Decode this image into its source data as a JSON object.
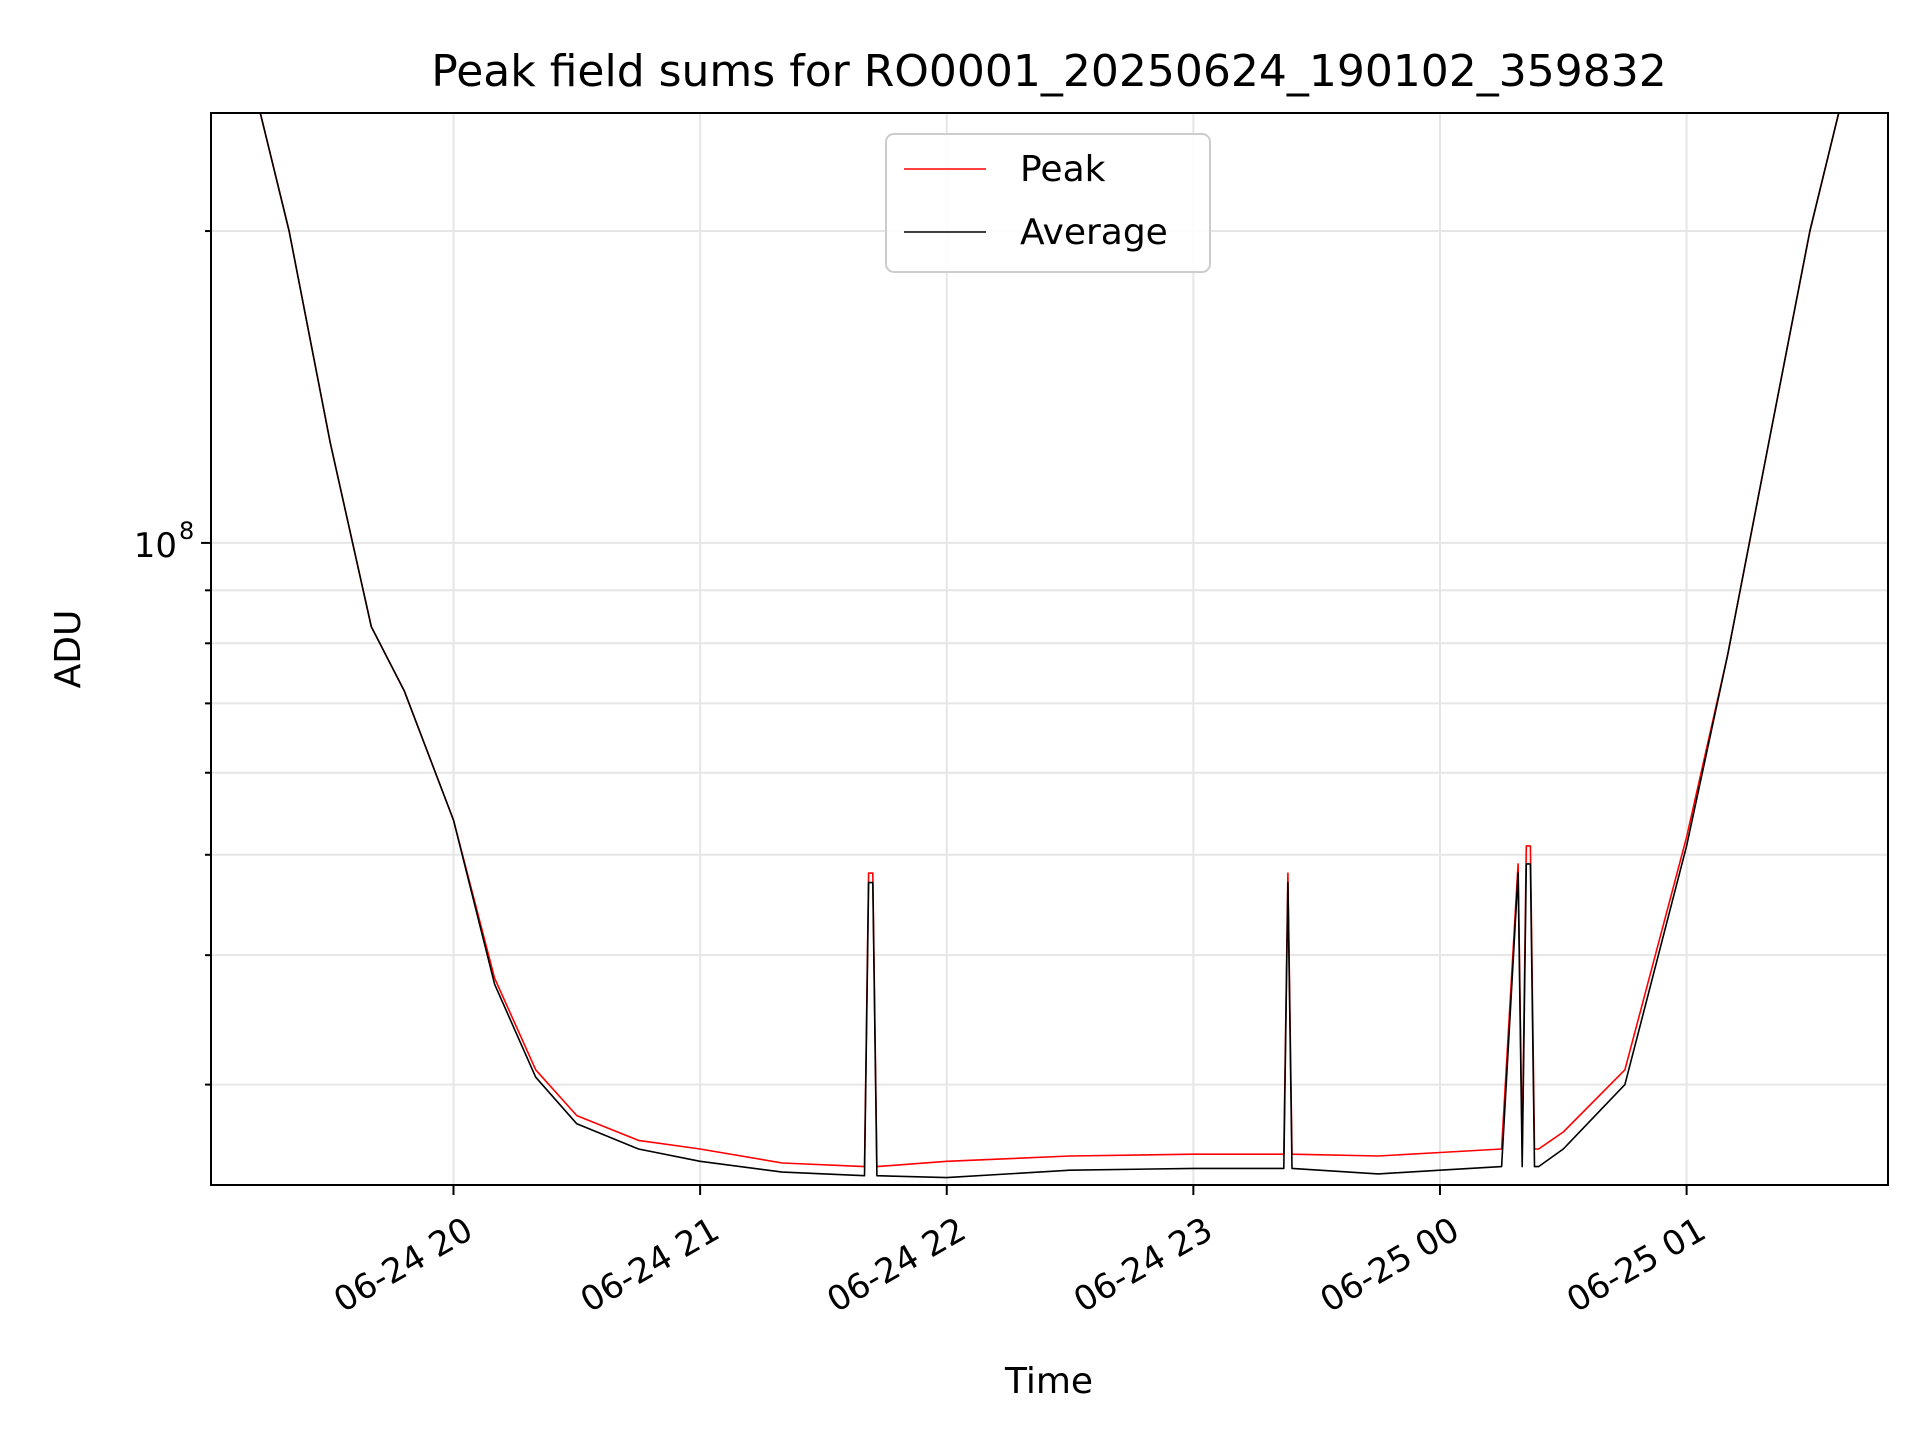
{
  "chart_data": {
    "type": "line",
    "title": "Peak field sums for RO0001_20250624_190102_359832",
    "xlabel": "Time",
    "ylabel": "ADU",
    "yscale": "log",
    "grid": true,
    "legend_position": "upper center",
    "x_tick_labels": [
      "06-24 20",
      "06-24 21",
      "06-24 22",
      "06-24 23",
      "06-25 00",
      "06-25 01"
    ],
    "x_ticks": [
      "2025-06-24 20:00",
      "2025-06-24 21:00",
      "2025-06-24 22:00",
      "2025-06-24 23:00",
      "2025-06-25 00:00",
      "2025-06-25 01:00"
    ],
    "xlim": [
      "2025-06-24 19:01",
      "2025-06-25 01:49"
    ],
    "y_major_ticks": [
      100000000
    ],
    "y_major_tick_labels": [
      "10^8"
    ],
    "ylim": [
      24000000,
      260000000
    ],
    "series": [
      {
        "name": "Peak",
        "color": "#ff0000",
        "x": [
          "2025-06-24 19:10",
          "2025-06-24 19:13",
          "2025-06-24 19:20",
          "2025-06-24 19:30",
          "2025-06-24 19:40",
          "2025-06-24 19:48",
          "2025-06-24 20:00",
          "2025-06-24 20:10",
          "2025-06-24 20:20",
          "2025-06-24 20:30",
          "2025-06-24 20:45",
          "2025-06-24 21:00",
          "2025-06-24 21:20",
          "2025-06-24 21:40",
          "2025-06-24 21:41",
          "2025-06-24 21:42",
          "2025-06-24 21:43",
          "2025-06-24 22:00",
          "2025-06-24 22:30",
          "2025-06-24 23:00",
          "2025-06-24 23:22",
          "2025-06-24 23:23",
          "2025-06-24 23:24",
          "2025-06-24 23:45",
          "2025-06-25 00:00",
          "2025-06-25 00:15",
          "2025-06-25 00:19",
          "2025-06-25 00:20",
          "2025-06-25 00:21",
          "2025-06-25 00:22",
          "2025-06-25 00:23",
          "2025-06-25 00:24",
          "2025-06-25 00:30",
          "2025-06-25 00:45",
          "2025-06-25 01:00",
          "2025-06-25 01:10",
          "2025-06-25 01:20",
          "2025-06-25 01:30",
          "2025-06-25 01:37",
          "2025-06-25 01:40"
        ],
        "y": [
          260000000,
          260000000,
          200000000,
          125000000,
          83000000,
          72000000,
          54000000,
          38000000,
          31000000,
          28000000,
          26500000,
          26000000,
          25200000,
          25000000,
          48000000,
          48000000,
          25000000,
          25300000,
          25600000,
          25700000,
          25700000,
          48000000,
          25700000,
          25600000,
          25800000,
          26000000,
          49000000,
          26000000,
          51000000,
          51000000,
          26000000,
          26000000,
          27000000,
          31000000,
          52000000,
          78000000,
          125000000,
          200000000,
          260000000,
          260000000
        ]
      },
      {
        "name": "Average",
        "color": "#000000",
        "x": [
          "2025-06-24 19:10",
          "2025-06-24 19:13",
          "2025-06-24 19:20",
          "2025-06-24 19:30",
          "2025-06-24 19:40",
          "2025-06-24 19:48",
          "2025-06-24 20:00",
          "2025-06-24 20:10",
          "2025-06-24 20:20",
          "2025-06-24 20:30",
          "2025-06-24 20:45",
          "2025-06-24 21:00",
          "2025-06-24 21:20",
          "2025-06-24 21:40",
          "2025-06-24 21:41",
          "2025-06-24 21:42",
          "2025-06-24 21:43",
          "2025-06-24 22:00",
          "2025-06-24 22:30",
          "2025-06-24 23:00",
          "2025-06-24 23:22",
          "2025-06-24 23:23",
          "2025-06-24 23:24",
          "2025-06-24 23:45",
          "2025-06-25 00:00",
          "2025-06-25 00:15",
          "2025-06-25 00:19",
          "2025-06-25 00:20",
          "2025-06-25 00:21",
          "2025-06-25 00:22",
          "2025-06-25 00:23",
          "2025-06-25 00:24",
          "2025-06-25 00:30",
          "2025-06-25 00:45",
          "2025-06-25 01:00",
          "2025-06-25 01:10",
          "2025-06-25 01:20",
          "2025-06-25 01:30",
          "2025-06-25 01:37",
          "2025-06-25 01:40"
        ],
        "y": [
          260000000,
          260000000,
          200000000,
          125000000,
          83000000,
          72000000,
          54000000,
          37500000,
          30500000,
          27500000,
          26000000,
          25300000,
          24700000,
          24500000,
          47000000,
          47000000,
          24500000,
          24400000,
          24800000,
          24900000,
          24900000,
          47000000,
          24900000,
          24600000,
          24800000,
          25000000,
          48000000,
          25000000,
          49000000,
          49000000,
          25000000,
          25000000,
          26000000,
          30000000,
          51000000,
          78000000,
          125000000,
          200000000,
          260000000,
          260000000
        ]
      }
    ]
  }
}
